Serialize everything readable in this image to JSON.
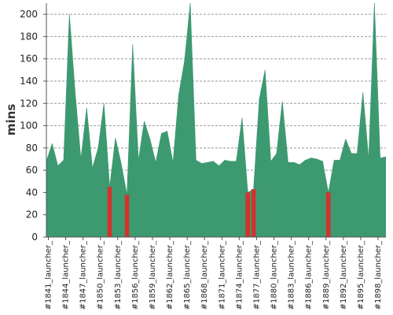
{
  "chart_data": {
    "type": "area",
    "title": "",
    "xlabel": "",
    "ylabel": "mins",
    "ylim": [
      0,
      210
    ],
    "yticks": [
      0,
      20,
      40,
      60,
      80,
      100,
      120,
      140,
      160,
      180,
      200
    ],
    "grid": "horizontal-dashed",
    "colors": {
      "normal": "#3d9970",
      "failed": "#d4322c",
      "grid": "#999999",
      "axis": "#555555"
    },
    "x_tick_labels": [
      "#1841_launcher_",
      "#1844_launcher_",
      "#1847_launcher_",
      "#1850_launcher_",
      "#1853_launcher_",
      "#1856_launcher_",
      "#1859_launcher_",
      "#1862_launcher_",
      "#1865_launcher_",
      "#1868_launcher_",
      "#1871_launcher_",
      "#1874_launcher_",
      "#1877_launcher_",
      "#1880_launcher_",
      "#1883_launcher_",
      "#1886_launcher_",
      "#1889_launcher_",
      "#1892_launcher_",
      "#1895_launcher_",
      "#1898_launcher_"
    ],
    "values": [
      68,
      84,
      64,
      69,
      200,
      130,
      70,
      116,
      62,
      80,
      120,
      45,
      89,
      66,
      38,
      173,
      69,
      104,
      88,
      67,
      93,
      95,
      67,
      128,
      158,
      215,
      69,
      66,
      67,
      68,
      64,
      69,
      68,
      68,
      107,
      40,
      43,
      124,
      150,
      68,
      75,
      122,
      67,
      67,
      65,
      69,
      71,
      70,
      68,
      40,
      69,
      69,
      88,
      75,
      75,
      130,
      70,
      215,
      71,
      72
    ],
    "failed_indices": [
      11,
      14,
      35,
      36,
      49
    ]
  }
}
